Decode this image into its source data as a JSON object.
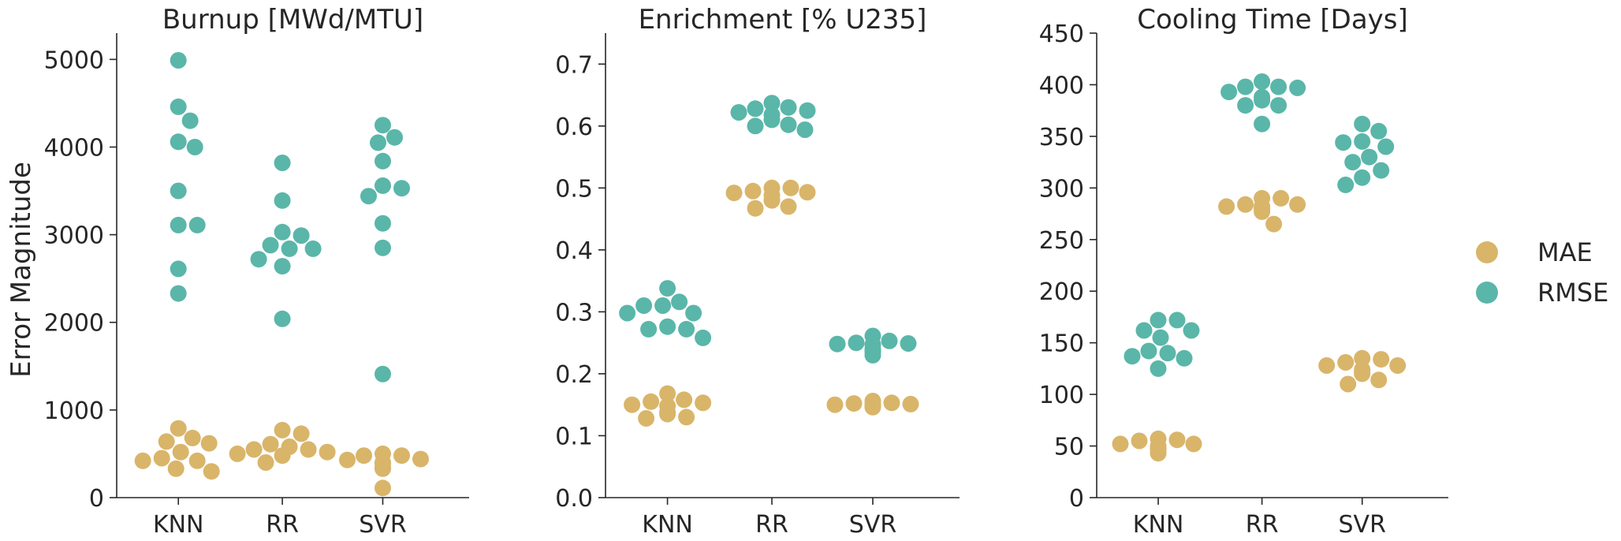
{
  "figure": {
    "ylabel": "Error Magnitude",
    "legend": {
      "placement": "right",
      "items": [
        {
          "label": "MAE",
          "color": "#d9b56a"
        },
        {
          "label": "RMSE",
          "color": "#5ab6a9"
        }
      ]
    }
  },
  "chart_data": [
    {
      "type": "scatter",
      "subtype": "swarm",
      "title": "Burnup [MWd/MTU]",
      "xlabel": "",
      "ylabel": "Error Magnitude",
      "categories": [
        "KNN",
        "RR",
        "SVR"
      ],
      "ylim": [
        0,
        5300
      ],
      "yticks": [
        0,
        1000,
        2000,
        3000,
        4000,
        5000
      ],
      "grid": false,
      "series": [
        {
          "name": "MAE",
          "color": "#d9b56a",
          "values": [
            [
              450,
              330,
              620,
              790,
              520,
              300,
              420,
              640,
              420,
              680
            ],
            [
              610,
              550,
              520,
              500,
              730,
              400,
              770,
              480,
              550,
              580
            ],
            [
              500,
              440,
              400,
              340,
              330,
              110,
              390,
              430,
              480,
              480
            ]
          ]
        },
        {
          "name": "RMSE",
          "color": "#5ab6a9",
          "values": [
            [
              4990,
              4460,
              4300,
              4060,
              4000,
              3500,
              3110,
              3110,
              2610,
              2330
            ],
            [
              3820,
              3390,
              3030,
              2990,
              2880,
              2840,
              2840,
              2720,
              2640,
              2040
            ],
            [
              4250,
              4110,
              4050,
              3840,
              3560,
              3530,
              3440,
              3130,
              2850,
              1410
            ]
          ]
        }
      ]
    },
    {
      "type": "scatter",
      "subtype": "swarm",
      "title": "Enrichment [% U235]",
      "xlabel": "",
      "ylabel": "",
      "categories": [
        "KNN",
        "RR",
        "SVR"
      ],
      "ylim": [
        0,
        0.75
      ],
      "yticks": [
        "0.0",
        "0.1",
        "0.2",
        "0.3",
        "0.4",
        "0.5",
        "0.6",
        "0.7"
      ],
      "grid": false,
      "series": [
        {
          "name": "MAE",
          "color": "#d9b56a",
          "values": [
            [
              0.155,
              0.138,
              0.168,
              0.13,
              0.148,
              0.158,
              0.128,
              0.135,
              0.15,
              0.153
            ],
            [
              0.493,
              0.492,
              0.47,
              0.5,
              0.488,
              0.467,
              0.48,
              0.5,
              0.48,
              0.495
            ],
            [
              0.153,
              0.15,
              0.148,
              0.146,
              0.15,
              0.149,
              0.151,
              0.15,
              0.152,
              0.156
            ]
          ]
        },
        {
          "name": "RMSE",
          "color": "#5ab6a9",
          "values": [
            [
              0.31,
              0.31,
              0.272,
              0.298,
              0.338,
              0.258,
              0.272,
              0.298,
              0.316,
              0.276
            ],
            [
              0.63,
              0.61,
              0.625,
              0.602,
              0.618,
              0.594,
              0.637,
              0.6,
              0.622,
              0.628
            ],
            [
              0.248,
              0.247,
              0.236,
              0.249,
              0.23,
              0.261,
              0.237,
              0.24,
              0.25,
              0.253
            ]
          ]
        }
      ]
    },
    {
      "type": "scatter",
      "subtype": "swarm",
      "title": "Cooling Time [Days]",
      "xlabel": "",
      "ylabel": "",
      "categories": [
        "KNN",
        "RR",
        "SVR"
      ],
      "ylim": [
        0,
        450
      ],
      "yticks": [
        0,
        50,
        100,
        150,
        200,
        250,
        300,
        350,
        400,
        450
      ],
      "grid": false,
      "series": [
        {
          "name": "MAE",
          "color": "#d9b56a",
          "values": [
            [
              55,
              52,
              48,
              57,
              43,
              46,
              48,
              50,
              52,
              56
            ],
            [
              290,
              284,
              282,
              280,
              277,
              265,
              280,
              282,
              284,
              290
            ],
            [
              135,
              124,
              134,
              114,
              128,
              110,
              131,
              120,
              122,
              128
            ]
          ]
        },
        {
          "name": "RMSE",
          "color": "#5ab6a9",
          "values": [
            [
              172,
              142,
              162,
              135,
              172,
              155,
              125,
              137,
              162,
              140
            ],
            [
              398,
              397,
              380,
              393,
              362,
              380,
              388,
              385,
              398,
              403
            ],
            [
              345,
              310,
              325,
              355,
              340,
              303,
              317,
              362,
              330,
              344
            ]
          ]
        }
      ]
    }
  ]
}
